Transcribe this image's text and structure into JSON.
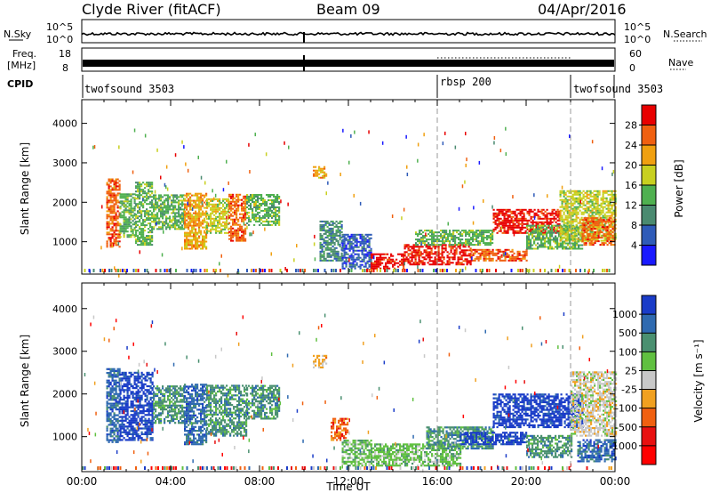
{
  "header": {
    "station": "Clyde River (fitACF)",
    "beam": "Beam 09",
    "date": "04/Apr/2016"
  },
  "top_panels": {
    "nsky_label": "N.Sky",
    "nsky_tick_top": "10^5",
    "nsky_tick_bottom": "10^0",
    "nsearch_label": "N.Search",
    "freq_label_1": "Freq.",
    "freq_label_2": "[MHz]",
    "freq_tick_top": "18",
    "freq_tick_bottom": "8",
    "nave_tick_top": "60",
    "nave_tick_bottom": "0",
    "nave_label": "Nave",
    "cpid_label": "CPID",
    "cpid_segments": [
      {
        "label": "twofsound 3503",
        "start_hour": 0,
        "end_hour": 16
      },
      {
        "label": "rbsp 200",
        "start_hour": 16,
        "end_hour": 22
      },
      {
        "label": "twofsound 3503",
        "start_hour": 22,
        "end_hour": 24
      }
    ],
    "freq_bar_value_mhz": 10.5,
    "nave_dotted_hours": [
      16,
      22
    ]
  },
  "chart_data": [
    {
      "type": "heatmap",
      "name": "power",
      "ylabel": "Slant Range [km]",
      "yticks": [
        1000,
        2000,
        3000,
        4000
      ],
      "ylim": [
        180,
        4600
      ],
      "xlim": [
        0,
        24
      ],
      "xticks": [
        "00:00",
        "04:00",
        "08:00",
        "12:00",
        "16:00",
        "20:00",
        "00:00"
      ],
      "colorbar_label": "Power [dB]",
      "colorbar_ticks": [
        "4",
        "8",
        "12",
        "16",
        "20",
        "24",
        "28"
      ],
      "colorbar_colors": [
        "#1a1aff",
        "#2f5bb8",
        "#4a8a70",
        "#4fb050",
        "#c8d020",
        "#f0a010",
        "#f06010",
        "#e80000"
      ],
      "echo_regions": [
        {
          "t0": 1.1,
          "t1": 1.7,
          "r0": 850,
          "r1": 2600,
          "c": 6
        },
        {
          "t0": 1.7,
          "t1": 2.4,
          "r0": 1100,
          "r1": 2200,
          "c": 3
        },
        {
          "t0": 2.4,
          "t1": 3.2,
          "r0": 900,
          "r1": 2500,
          "c": 3
        },
        {
          "t0": 3.2,
          "t1": 4.6,
          "r0": 1300,
          "r1": 2200,
          "c": 3
        },
        {
          "t0": 4.6,
          "t1": 5.6,
          "r0": 800,
          "r1": 2200,
          "c": 5
        },
        {
          "t0": 5.6,
          "t1": 6.6,
          "r0": 1200,
          "r1": 2100,
          "c": 4
        },
        {
          "t0": 6.6,
          "t1": 7.4,
          "r0": 1000,
          "r1": 2200,
          "c": 6
        },
        {
          "t0": 7.4,
          "t1": 8.9,
          "r0": 1400,
          "r1": 2200,
          "c": 3
        },
        {
          "t0": 10.4,
          "t1": 11.0,
          "r0": 2600,
          "r1": 2900,
          "c": 5
        },
        {
          "t0": 10.7,
          "t1": 11.7,
          "r0": 500,
          "r1": 1500,
          "c": 2
        },
        {
          "t0": 11.7,
          "t1": 13.0,
          "r0": 300,
          "r1": 1200,
          "c": 1
        },
        {
          "t0": 13.0,
          "t1": 14.5,
          "r0": 300,
          "r1": 700,
          "c": 7
        },
        {
          "t0": 14.5,
          "t1": 17.5,
          "r0": 400,
          "r1": 900,
          "c": 7
        },
        {
          "t0": 15.0,
          "t1": 18.5,
          "r0": 900,
          "r1": 1300,
          "c": 3
        },
        {
          "t0": 17.5,
          "t1": 20.0,
          "r0": 500,
          "r1": 800,
          "c": 6
        },
        {
          "t0": 18.5,
          "t1": 21.5,
          "r0": 1200,
          "r1": 1800,
          "c": 7
        },
        {
          "t0": 20.0,
          "t1": 22.5,
          "r0": 800,
          "r1": 1400,
          "c": 3
        },
        {
          "t0": 21.5,
          "t1": 24.0,
          "r0": 1000,
          "r1": 2300,
          "c": 4
        },
        {
          "t0": 22.5,
          "t1": 24.0,
          "r0": 900,
          "r1": 1600,
          "c": 6
        }
      ]
    },
    {
      "type": "heatmap",
      "name": "velocity",
      "ylabel": "Slant Range [km]",
      "xlabel": "Time UT",
      "yticks": [
        1000,
        2000,
        3000,
        4000
      ],
      "ylim": [
        180,
        4600
      ],
      "xlim": [
        0,
        24
      ],
      "xticks": [
        "00:00",
        "04:00",
        "08:00",
        "12:00",
        "16:00",
        "20:00",
        "00:00"
      ],
      "colorbar_label": "Velocity [m s⁻¹]",
      "colorbar_ticks": [
        "1000",
        "500",
        "100",
        "25",
        "-25",
        "-100",
        "-500",
        "-1000"
      ],
      "colorbar_colors": [
        "#1a3cc8",
        "#2f6ab0",
        "#4a9070",
        "#60c040",
        "#c8c8c8",
        "#f0a020",
        "#f06010",
        "#e81010",
        "#ff0000"
      ],
      "echo_regions": [
        {
          "t0": 1.1,
          "t1": 1.7,
          "r0": 850,
          "r1": 2600,
          "c": 1
        },
        {
          "t0": 1.7,
          "t1": 3.2,
          "r0": 900,
          "r1": 2500,
          "c": 0
        },
        {
          "t0": 3.2,
          "t1": 4.6,
          "r0": 1300,
          "r1": 2200,
          "c": 2
        },
        {
          "t0": 4.6,
          "t1": 5.6,
          "r0": 800,
          "r1": 2200,
          "c": 1
        },
        {
          "t0": 5.6,
          "t1": 7.4,
          "r0": 1000,
          "r1": 2200,
          "c": 2
        },
        {
          "t0": 7.4,
          "t1": 8.9,
          "r0": 1400,
          "r1": 2200,
          "c": 2
        },
        {
          "t0": 10.4,
          "t1": 11.0,
          "r0": 2600,
          "r1": 2900,
          "c": 5
        },
        {
          "t0": 11.2,
          "t1": 12.0,
          "r0": 900,
          "r1": 1400,
          "c": 6
        },
        {
          "t0": 11.7,
          "t1": 13.0,
          "r0": 300,
          "r1": 900,
          "c": 3
        },
        {
          "t0": 13.0,
          "t1": 17.0,
          "r0": 300,
          "r1": 800,
          "c": 3
        },
        {
          "t0": 15.5,
          "t1": 18.5,
          "r0": 700,
          "r1": 1200,
          "c": 2
        },
        {
          "t0": 17.0,
          "t1": 20.0,
          "r0": 800,
          "r1": 1100,
          "c": 0
        },
        {
          "t0": 18.5,
          "t1": 22.5,
          "r0": 1200,
          "r1": 2000,
          "c": 0
        },
        {
          "t0": 20.0,
          "t1": 22.0,
          "r0": 500,
          "r1": 1000,
          "c": 2
        },
        {
          "t0": 22.0,
          "t1": 24.0,
          "r0": 1000,
          "r1": 2500,
          "c": 4
        },
        {
          "t0": 22.3,
          "t1": 24.0,
          "r0": 400,
          "r1": 900,
          "c": 1
        }
      ]
    }
  ]
}
